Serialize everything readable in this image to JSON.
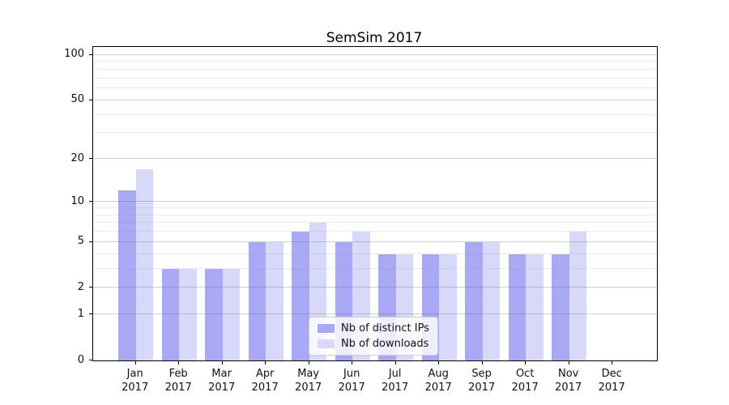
{
  "title": "SemSim 2017",
  "legend": {
    "items": [
      {
        "label": "Nb of distinct IPs",
        "color": "#a8a8f4"
      },
      {
        "label": "Nb of downloads",
        "color": "#d8d8f8"
      }
    ]
  },
  "chart_data": {
    "type": "bar",
    "title": "SemSim 2017",
    "xlabel": "",
    "ylabel": "",
    "yscale": "log1p",
    "grid": true,
    "legend_position": "lower center",
    "categories": [
      "Jan 2017",
      "Feb 2017",
      "Mar 2017",
      "Apr 2017",
      "May 2017",
      "Jun 2017",
      "Jul 2017",
      "Aug 2017",
      "Sep 2017",
      "Oct 2017",
      "Nov 2017",
      "Dec 2017"
    ],
    "series": [
      {
        "name": "Nb of distinct IPs",
        "color": "#a8a8f4",
        "values": [
          12,
          3,
          3,
          5,
          6,
          5,
          4,
          4,
          5,
          4,
          4,
          0
        ]
      },
      {
        "name": "Nb of downloads",
        "color": "#d8d8f8",
        "values": [
          17,
          3,
          3,
          5,
          7,
          6,
          4,
          4,
          5,
          4,
          6,
          0
        ]
      }
    ],
    "yticks_major": [
      0,
      1,
      2,
      5,
      10,
      20,
      50,
      100
    ],
    "yticks_minor": [
      3,
      4,
      6,
      7,
      8,
      9,
      30,
      40,
      60,
      70,
      80,
      90
    ],
    "ylim": [
      0,
      113
    ]
  }
}
